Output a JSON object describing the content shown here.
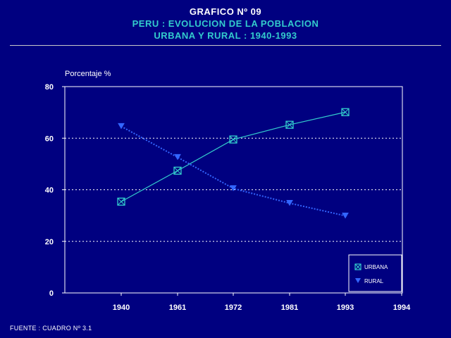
{
  "header": {
    "title_line1": "GRAFICO Nº 09",
    "title_line2": "PERU : EVOLUCION DE LA POBLACION",
    "title_line3": "URBANA Y RURAL : 1940-1993"
  },
  "footer": {
    "source": "FUENTE : CUADRO Nº 3.1"
  },
  "colors": {
    "background": "#000080",
    "urbana": "#33cccc",
    "rural": "#3366ff",
    "axis": "#ffffff"
  },
  "chart_data": {
    "type": "line",
    "title": "PERU : EVOLUCION DE LA POBLACION URBANA Y RURAL : 1940-1993",
    "xlabel": "",
    "ylabel": "Porcentaje %",
    "x": [
      1940,
      1961,
      1972,
      1981,
      1993
    ],
    "x_ticks": [
      "1940",
      "1961",
      "1972",
      "1981",
      "1993",
      "1994"
    ],
    "ylim": [
      0,
      80
    ],
    "y_ticks": [
      "0",
      "20",
      "40",
      "60",
      "80"
    ],
    "grid": true,
    "legend_position": "bottom-right",
    "series": [
      {
        "name": "URBANA",
        "values": [
          35.4,
          47.4,
          59.5,
          65.2,
          70.1
        ],
        "marker": "square-x"
      },
      {
        "name": "RURAL",
        "values": [
          64.6,
          52.6,
          40.5,
          34.8,
          29.9
        ],
        "marker": "triangle-down"
      }
    ]
  }
}
